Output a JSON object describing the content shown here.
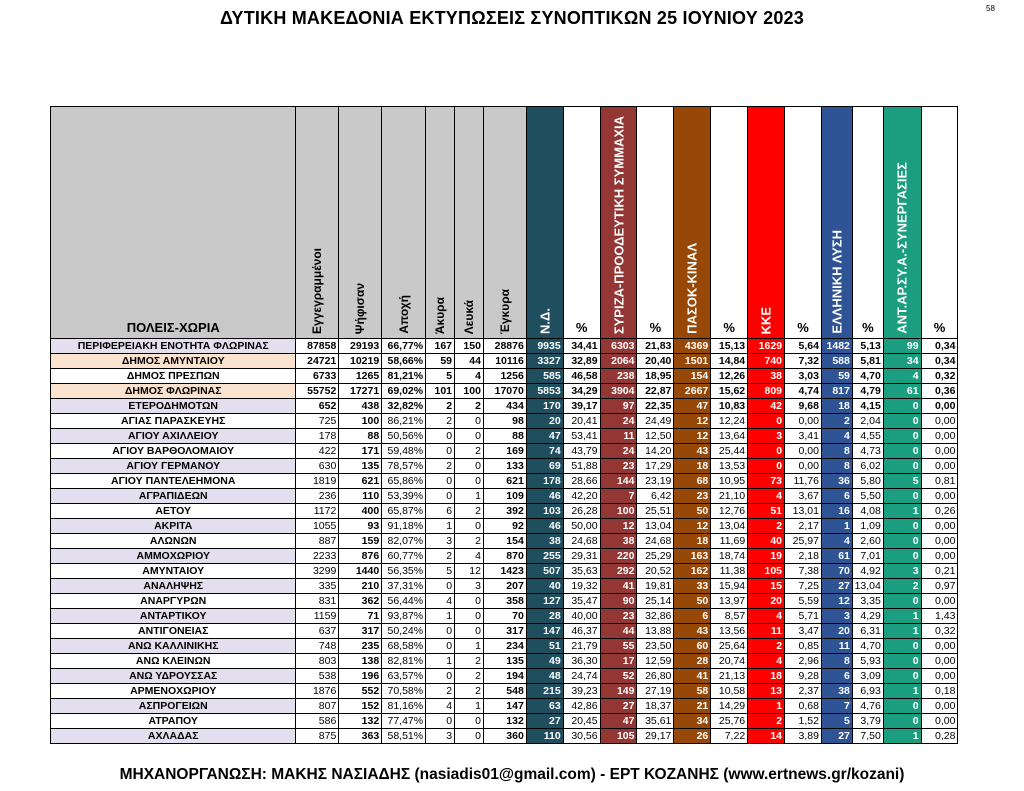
{
  "title": "ΔΥΤΙΚΗ ΜΑΚΕΔΟΝΙΑ ΕΚΤΥΠΩΣΕΙΣ ΣΥΝΟΠΤΙΚΩΝ 25 ΙΟΥΝΙΟΥ 2023",
  "page_number": "58",
  "footer": "ΜΗΧΑΝΟΡΓΑΝΩΣΗ: ΜΑΚΗΣ ΝΑΣΙΑΔΗΣ (nasiadis01@gmail.com) - ΕΡΤ ΚΟΖΑΝΗΣ (www.ertnews.gr/kozani)",
  "headers": {
    "name": "ΠΟΛΕΙΣ-ΧΩΡΙΑ",
    "registered": "Εγγεγραμμένοι",
    "voted": "Ψήφισαν",
    "turnout": "Αποχή",
    "invalid": "Άκυρα",
    "blank": "Λευκά",
    "valid": "Έγκυρα",
    "pct": "%"
  },
  "parties": [
    {
      "name": "Ν.Δ.",
      "color": "#1f4e5f"
    },
    {
      "name": "ΣΥΡΙΖΑ-ΠΡΟΟΔΕΥΤΙΚΗ ΣΥΜΜΑΧΙΑ",
      "color": "#943634"
    },
    {
      "name": "ΠΑΣΟΚ-ΚΙΝΑΛ",
      "color": "#974706"
    },
    {
      "name": "ΚΚΕ",
      "color": "#ff0000"
    },
    {
      "name": "ΕΛΛΗΝΙΚΗ ΛΥΣΗ",
      "color": "#2e5496"
    },
    {
      "name": "ΑΝΤ.ΑΡ.ΣΥ.Α.-ΣΥΝΕΡΓΑΣΙΕΣ",
      "color": "#1a9e7f"
    }
  ],
  "rows": [
    {
      "name": "ΠΕΡΙΦΕΡΕΙΑΚΗ ΕΝΟΤΗΤΑ ΦΛΩΡΙΝΑΣ",
      "style": "top",
      "registered": "87858",
      "voted": "29193",
      "turnout": "66,77%",
      "invalid": "167",
      "blank": "150",
      "valid": "28876",
      "votes": [
        [
          "9935",
          "34,41"
        ],
        [
          "6303",
          "21,83"
        ],
        [
          "4369",
          "15,13"
        ],
        [
          "1629",
          "5,64"
        ],
        [
          "1482",
          "5,13"
        ],
        [
          "99",
          "0,34"
        ]
      ]
    },
    {
      "name": "ΔΗΜΟΣ ΑΜΥΝΤΑΙΟΥ",
      "style": "hl",
      "registered": "24721",
      "voted": "10219",
      "turnout": "58,66%",
      "invalid": "59",
      "blank": "44",
      "valid": "10116",
      "votes": [
        [
          "3327",
          "32,89"
        ],
        [
          "2064",
          "20,40"
        ],
        [
          "1501",
          "14,84"
        ],
        [
          "740",
          "7,32"
        ],
        [
          "588",
          "5,81"
        ],
        [
          "34",
          "0,34"
        ]
      ]
    },
    {
      "name": "ΔΗΜΟΣ ΠΡΕΣΠΩΝ",
      "style": "hl2",
      "registered": "6733",
      "voted": "1265",
      "turnout": "81,21%",
      "invalid": "5",
      "blank": "4",
      "valid": "1256",
      "votes": [
        [
          "585",
          "46,58"
        ],
        [
          "238",
          "18,95"
        ],
        [
          "154",
          "12,26"
        ],
        [
          "38",
          "3,03"
        ],
        [
          "59",
          "4,70"
        ],
        [
          "4",
          "0,32"
        ]
      ]
    },
    {
      "name": "ΔΗΜΟΣ ΦΛΩΡΙΝΑΣ",
      "style": "hl",
      "registered": "55752",
      "voted": "17271",
      "turnout": "69,02%",
      "invalid": "101",
      "blank": "100",
      "valid": "17070",
      "votes": [
        [
          "5853",
          "34,29"
        ],
        [
          "3904",
          "22,87"
        ],
        [
          "2667",
          "15,62"
        ],
        [
          "809",
          "4,74"
        ],
        [
          "817",
          "4,79"
        ],
        [
          "61",
          "0,36"
        ]
      ]
    },
    {
      "name": "ΕΤΕΡΟΔΗΜΟΤΩΝ",
      "style": "bold",
      "registered": "652",
      "voted": "438",
      "turnout": "32,82%",
      "invalid": "2",
      "blank": "2",
      "valid": "434",
      "votes": [
        [
          "170",
          "39,17"
        ],
        [
          "97",
          "22,35"
        ],
        [
          "47",
          "10,83"
        ],
        [
          "42",
          "9,68"
        ],
        [
          "18",
          "4,15"
        ],
        [
          "0",
          "0,00"
        ]
      ]
    },
    {
      "name": "ΑΓΙΑΣ ΠΑΡΑΣΚΕΥΗΣ",
      "registered": "725",
      "voted": "100",
      "turnout": "86,21%",
      "invalid": "2",
      "blank": "0",
      "valid": "98",
      "votes": [
        [
          "20",
          "20,41"
        ],
        [
          "24",
          "24,49"
        ],
        [
          "12",
          "12,24"
        ],
        [
          "0",
          "0,00"
        ],
        [
          "2",
          "2,04"
        ],
        [
          "0",
          "0,00"
        ]
      ]
    },
    {
      "name": "ΑΓΙΟΥ ΑΧΙΛΛΕΙΟΥ",
      "registered": "178",
      "voted": "88",
      "turnout": "50,56%",
      "invalid": "0",
      "blank": "0",
      "valid": "88",
      "votes": [
        [
          "47",
          "53,41"
        ],
        [
          "11",
          "12,50"
        ],
        [
          "12",
          "13,64"
        ],
        [
          "3",
          "3,41"
        ],
        [
          "4",
          "4,55"
        ],
        [
          "0",
          "0,00"
        ]
      ]
    },
    {
      "name": "ΑΓΙΟΥ ΒΑΡΘΟΛΟΜΑΙΟΥ",
      "registered": "422",
      "voted": "171",
      "turnout": "59,48%",
      "invalid": "0",
      "blank": "2",
      "valid": "169",
      "votes": [
        [
          "74",
          "43,79"
        ],
        [
          "24",
          "14,20"
        ],
        [
          "43",
          "25,44"
        ],
        [
          "0",
          "0,00"
        ],
        [
          "8",
          "4,73"
        ],
        [
          "0",
          "0,00"
        ]
      ]
    },
    {
      "name": "ΑΓΙΟΥ ΓΕΡΜΑΝΟΥ",
      "registered": "630",
      "voted": "135",
      "turnout": "78,57%",
      "invalid": "2",
      "blank": "0",
      "valid": "133",
      "votes": [
        [
          "69",
          "51,88"
        ],
        [
          "23",
          "17,29"
        ],
        [
          "18",
          "13,53"
        ],
        [
          "0",
          "0,00"
        ],
        [
          "8",
          "6,02"
        ],
        [
          "0",
          "0,00"
        ]
      ]
    },
    {
      "name": "ΑΓΙΟΥ ΠΑΝΤΕΛΕΗΜΟΝΑ",
      "registered": "1819",
      "voted": "621",
      "turnout": "65,86%",
      "invalid": "0",
      "blank": "0",
      "valid": "621",
      "votes": [
        [
          "178",
          "28,66"
        ],
        [
          "144",
          "23,19"
        ],
        [
          "68",
          "10,95"
        ],
        [
          "73",
          "11,76"
        ],
        [
          "36",
          "5,80"
        ],
        [
          "5",
          "0,81"
        ]
      ]
    },
    {
      "name": "ΑΓΡΑΠΙΔΕΩΝ",
      "registered": "236",
      "voted": "110",
      "turnout": "53,39%",
      "invalid": "0",
      "blank": "1",
      "valid": "109",
      "votes": [
        [
          "46",
          "42,20"
        ],
        [
          "7",
          "6,42"
        ],
        [
          "23",
          "21,10"
        ],
        [
          "4",
          "3,67"
        ],
        [
          "6",
          "5,50"
        ],
        [
          "0",
          "0,00"
        ]
      ]
    },
    {
      "name": "ΑΕΤΟΥ",
      "registered": "1172",
      "voted": "400",
      "turnout": "65,87%",
      "invalid": "6",
      "blank": "2",
      "valid": "392",
      "votes": [
        [
          "103",
          "26,28"
        ],
        [
          "100",
          "25,51"
        ],
        [
          "50",
          "12,76"
        ],
        [
          "51",
          "13,01"
        ],
        [
          "16",
          "4,08"
        ],
        [
          "1",
          "0,26"
        ]
      ]
    },
    {
      "name": "ΑΚΡΙΤΑ",
      "registered": "1055",
      "voted": "93",
      "turnout": "91,18%",
      "invalid": "1",
      "blank": "0",
      "valid": "92",
      "votes": [
        [
          "46",
          "50,00"
        ],
        [
          "12",
          "13,04"
        ],
        [
          "12",
          "13,04"
        ],
        [
          "2",
          "2,17"
        ],
        [
          "1",
          "1,09"
        ],
        [
          "0",
          "0,00"
        ]
      ]
    },
    {
      "name": "ΑΛΩΝΩΝ",
      "registered": "887",
      "voted": "159",
      "turnout": "82,07%",
      "invalid": "3",
      "blank": "2",
      "valid": "154",
      "votes": [
        [
          "38",
          "24,68"
        ],
        [
          "38",
          "24,68"
        ],
        [
          "18",
          "11,69"
        ],
        [
          "40",
          "25,97"
        ],
        [
          "4",
          "2,60"
        ],
        [
          "0",
          "0,00"
        ]
      ]
    },
    {
      "name": "ΑΜΜΟΧΩΡΙΟΥ",
      "registered": "2233",
      "voted": "876",
      "turnout": "60,77%",
      "invalid": "2",
      "blank": "4",
      "valid": "870",
      "votes": [
        [
          "255",
          "29,31"
        ],
        [
          "220",
          "25,29"
        ],
        [
          "163",
          "18,74"
        ],
        [
          "19",
          "2,18"
        ],
        [
          "61",
          "7,01"
        ],
        [
          "0",
          "0,00"
        ]
      ]
    },
    {
      "name": "ΑΜΥΝΤΑΙΟΥ",
      "registered": "3299",
      "voted": "1440",
      "turnout": "56,35%",
      "invalid": "5",
      "blank": "12",
      "valid": "1423",
      "votes": [
        [
          "507",
          "35,63"
        ],
        [
          "292",
          "20,52"
        ],
        [
          "162",
          "11,38"
        ],
        [
          "105",
          "7,38"
        ],
        [
          "70",
          "4,92"
        ],
        [
          "3",
          "0,21"
        ]
      ]
    },
    {
      "name": "ΑΝΑΛΗΨΗΣ",
      "registered": "335",
      "voted": "210",
      "turnout": "37,31%",
      "invalid": "0",
      "blank": "3",
      "valid": "207",
      "votes": [
        [
          "40",
          "19,32"
        ],
        [
          "41",
          "19,81"
        ],
        [
          "33",
          "15,94"
        ],
        [
          "15",
          "7,25"
        ],
        [
          "27",
          "13,04"
        ],
        [
          "2",
          "0,97"
        ]
      ]
    },
    {
      "name": "ΑΝΑΡΓΥΡΩΝ",
      "registered": "831",
      "voted": "362",
      "turnout": "56,44%",
      "invalid": "4",
      "blank": "0",
      "valid": "358",
      "votes": [
        [
          "127",
          "35,47"
        ],
        [
          "90",
          "25,14"
        ],
        [
          "50",
          "13,97"
        ],
        [
          "20",
          "5,59"
        ],
        [
          "12",
          "3,35"
        ],
        [
          "0",
          "0,00"
        ]
      ]
    },
    {
      "name": "ΑΝΤΑΡΤΙΚΟΥ",
      "registered": "1159",
      "voted": "71",
      "turnout": "93,87%",
      "invalid": "1",
      "blank": "0",
      "valid": "70",
      "votes": [
        [
          "28",
          "40,00"
        ],
        [
          "23",
          "32,86"
        ],
        [
          "6",
          "8,57"
        ],
        [
          "4",
          "5,71"
        ],
        [
          "3",
          "4,29"
        ],
        [
          "1",
          "1,43"
        ]
      ]
    },
    {
      "name": "ΑΝΤΙΓΟΝΕΙΑΣ",
      "registered": "637",
      "voted": "317",
      "turnout": "50,24%",
      "invalid": "0",
      "blank": "0",
      "valid": "317",
      "votes": [
        [
          "147",
          "46,37"
        ],
        [
          "44",
          "13,88"
        ],
        [
          "43",
          "13,56"
        ],
        [
          "11",
          "3,47"
        ],
        [
          "20",
          "6,31"
        ],
        [
          "1",
          "0,32"
        ]
      ]
    },
    {
      "name": "ΑΝΩ ΚΑΛΛΙΝΙΚΗΣ",
      "registered": "748",
      "voted": "235",
      "turnout": "68,58%",
      "invalid": "0",
      "blank": "1",
      "valid": "234",
      "votes": [
        [
          "51",
          "21,79"
        ],
        [
          "55",
          "23,50"
        ],
        [
          "60",
          "25,64"
        ],
        [
          "2",
          "0,85"
        ],
        [
          "11",
          "4,70"
        ],
        [
          "0",
          "0,00"
        ]
      ]
    },
    {
      "name": "ΑΝΩ ΚΛΕΙΝΩΝ",
      "registered": "803",
      "voted": "138",
      "turnout": "82,81%",
      "invalid": "1",
      "blank": "2",
      "valid": "135",
      "votes": [
        [
          "49",
          "36,30"
        ],
        [
          "17",
          "12,59"
        ],
        [
          "28",
          "20,74"
        ],
        [
          "4",
          "2,96"
        ],
        [
          "8",
          "5,93"
        ],
        [
          "0",
          "0,00"
        ]
      ]
    },
    {
      "name": "ΑΝΩ ΥΔΡΟΥΣΣΑΣ",
      "registered": "538",
      "voted": "196",
      "turnout": "63,57%",
      "invalid": "0",
      "blank": "2",
      "valid": "194",
      "votes": [
        [
          "48",
          "24,74"
        ],
        [
          "52",
          "26,80"
        ],
        [
          "41",
          "21,13"
        ],
        [
          "18",
          "9,28"
        ],
        [
          "6",
          "3,09"
        ],
        [
          "0",
          "0,00"
        ]
      ]
    },
    {
      "name": "ΑΡΜΕΝΟΧΩΡΙΟΥ",
      "registered": "1876",
      "voted": "552",
      "turnout": "70,58%",
      "invalid": "2",
      "blank": "2",
      "valid": "548",
      "votes": [
        [
          "215",
          "39,23"
        ],
        [
          "149",
          "27,19"
        ],
        [
          "58",
          "10,58"
        ],
        [
          "13",
          "2,37"
        ],
        [
          "38",
          "6,93"
        ],
        [
          "1",
          "0,18"
        ]
      ]
    },
    {
      "name": "ΑΣΠΡΟΓΕΙΩΝ",
      "registered": "807",
      "voted": "152",
      "turnout": "81,16%",
      "invalid": "4",
      "blank": "1",
      "valid": "147",
      "votes": [
        [
          "63",
          "42,86"
        ],
        [
          "27",
          "18,37"
        ],
        [
          "21",
          "14,29"
        ],
        [
          "1",
          "0,68"
        ],
        [
          "7",
          "4,76"
        ],
        [
          "0",
          "0,00"
        ]
      ]
    },
    {
      "name": "ΑΤΡΑΠΟΥ",
      "registered": "586",
      "voted": "132",
      "turnout": "77,47%",
      "invalid": "0",
      "blank": "0",
      "valid": "132",
      "votes": [
        [
          "27",
          "20,45"
        ],
        [
          "47",
          "35,61"
        ],
        [
          "34",
          "25,76"
        ],
        [
          "2",
          "1,52"
        ],
        [
          "5",
          "3,79"
        ],
        [
          "0",
          "0,00"
        ]
      ]
    },
    {
      "name": "ΑΧΛΑΔΑΣ",
      "registered": "875",
      "voted": "363",
      "turnout": "58,51%",
      "invalid": "3",
      "blank": "0",
      "valid": "360",
      "votes": [
        [
          "110",
          "30,56"
        ],
        [
          "105",
          "29,17"
        ],
        [
          "26",
          "7,22"
        ],
        [
          "14",
          "3,89"
        ],
        [
          "27",
          "7,50"
        ],
        [
          "1",
          "0,28"
        ]
      ]
    }
  ]
}
